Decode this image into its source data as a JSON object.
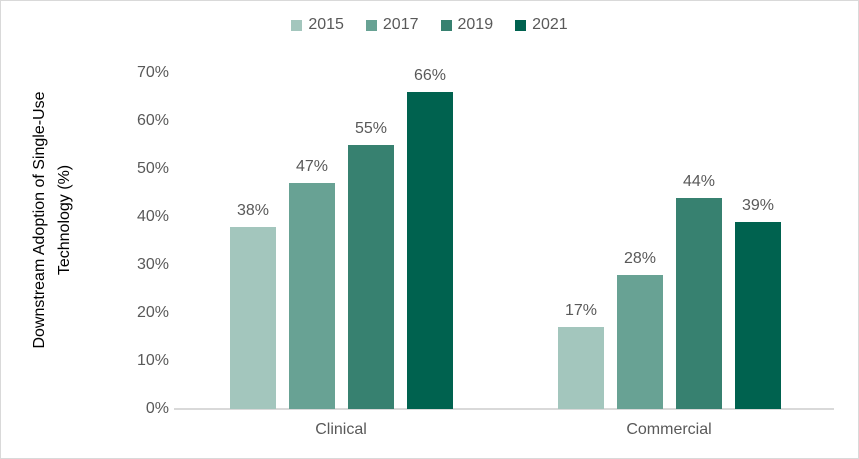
{
  "chart_data": {
    "type": "bar",
    "title": "",
    "ylabel_line1": "Downstream Adoption of Single-Use",
    "ylabel_line2": "Technology (%)",
    "categories": [
      "Clinical",
      "Commercial"
    ],
    "series": [
      {
        "name": "2015",
        "color": "#a3c6bd",
        "values": [
          38,
          17
        ]
      },
      {
        "name": "2017",
        "color": "#68a294",
        "values": [
          47,
          28
        ]
      },
      {
        "name": "2019",
        "color": "#378170",
        "values": [
          55,
          44
        ]
      },
      {
        "name": "2021",
        "color": "#00624f",
        "values": [
          66,
          39
        ]
      }
    ],
    "y_ticks": [
      "0%",
      "10%",
      "20%",
      "30%",
      "40%",
      "50%",
      "60%",
      "70%"
    ],
    "ylim": [
      0,
      70
    ],
    "data_label_suffix": "%",
    "legend_position": "top",
    "grid": false,
    "axis_line_color": "#d9d9d9",
    "text_color": "#595959",
    "title_color": "#000000"
  },
  "layout_values": {
    "note": ""
  }
}
